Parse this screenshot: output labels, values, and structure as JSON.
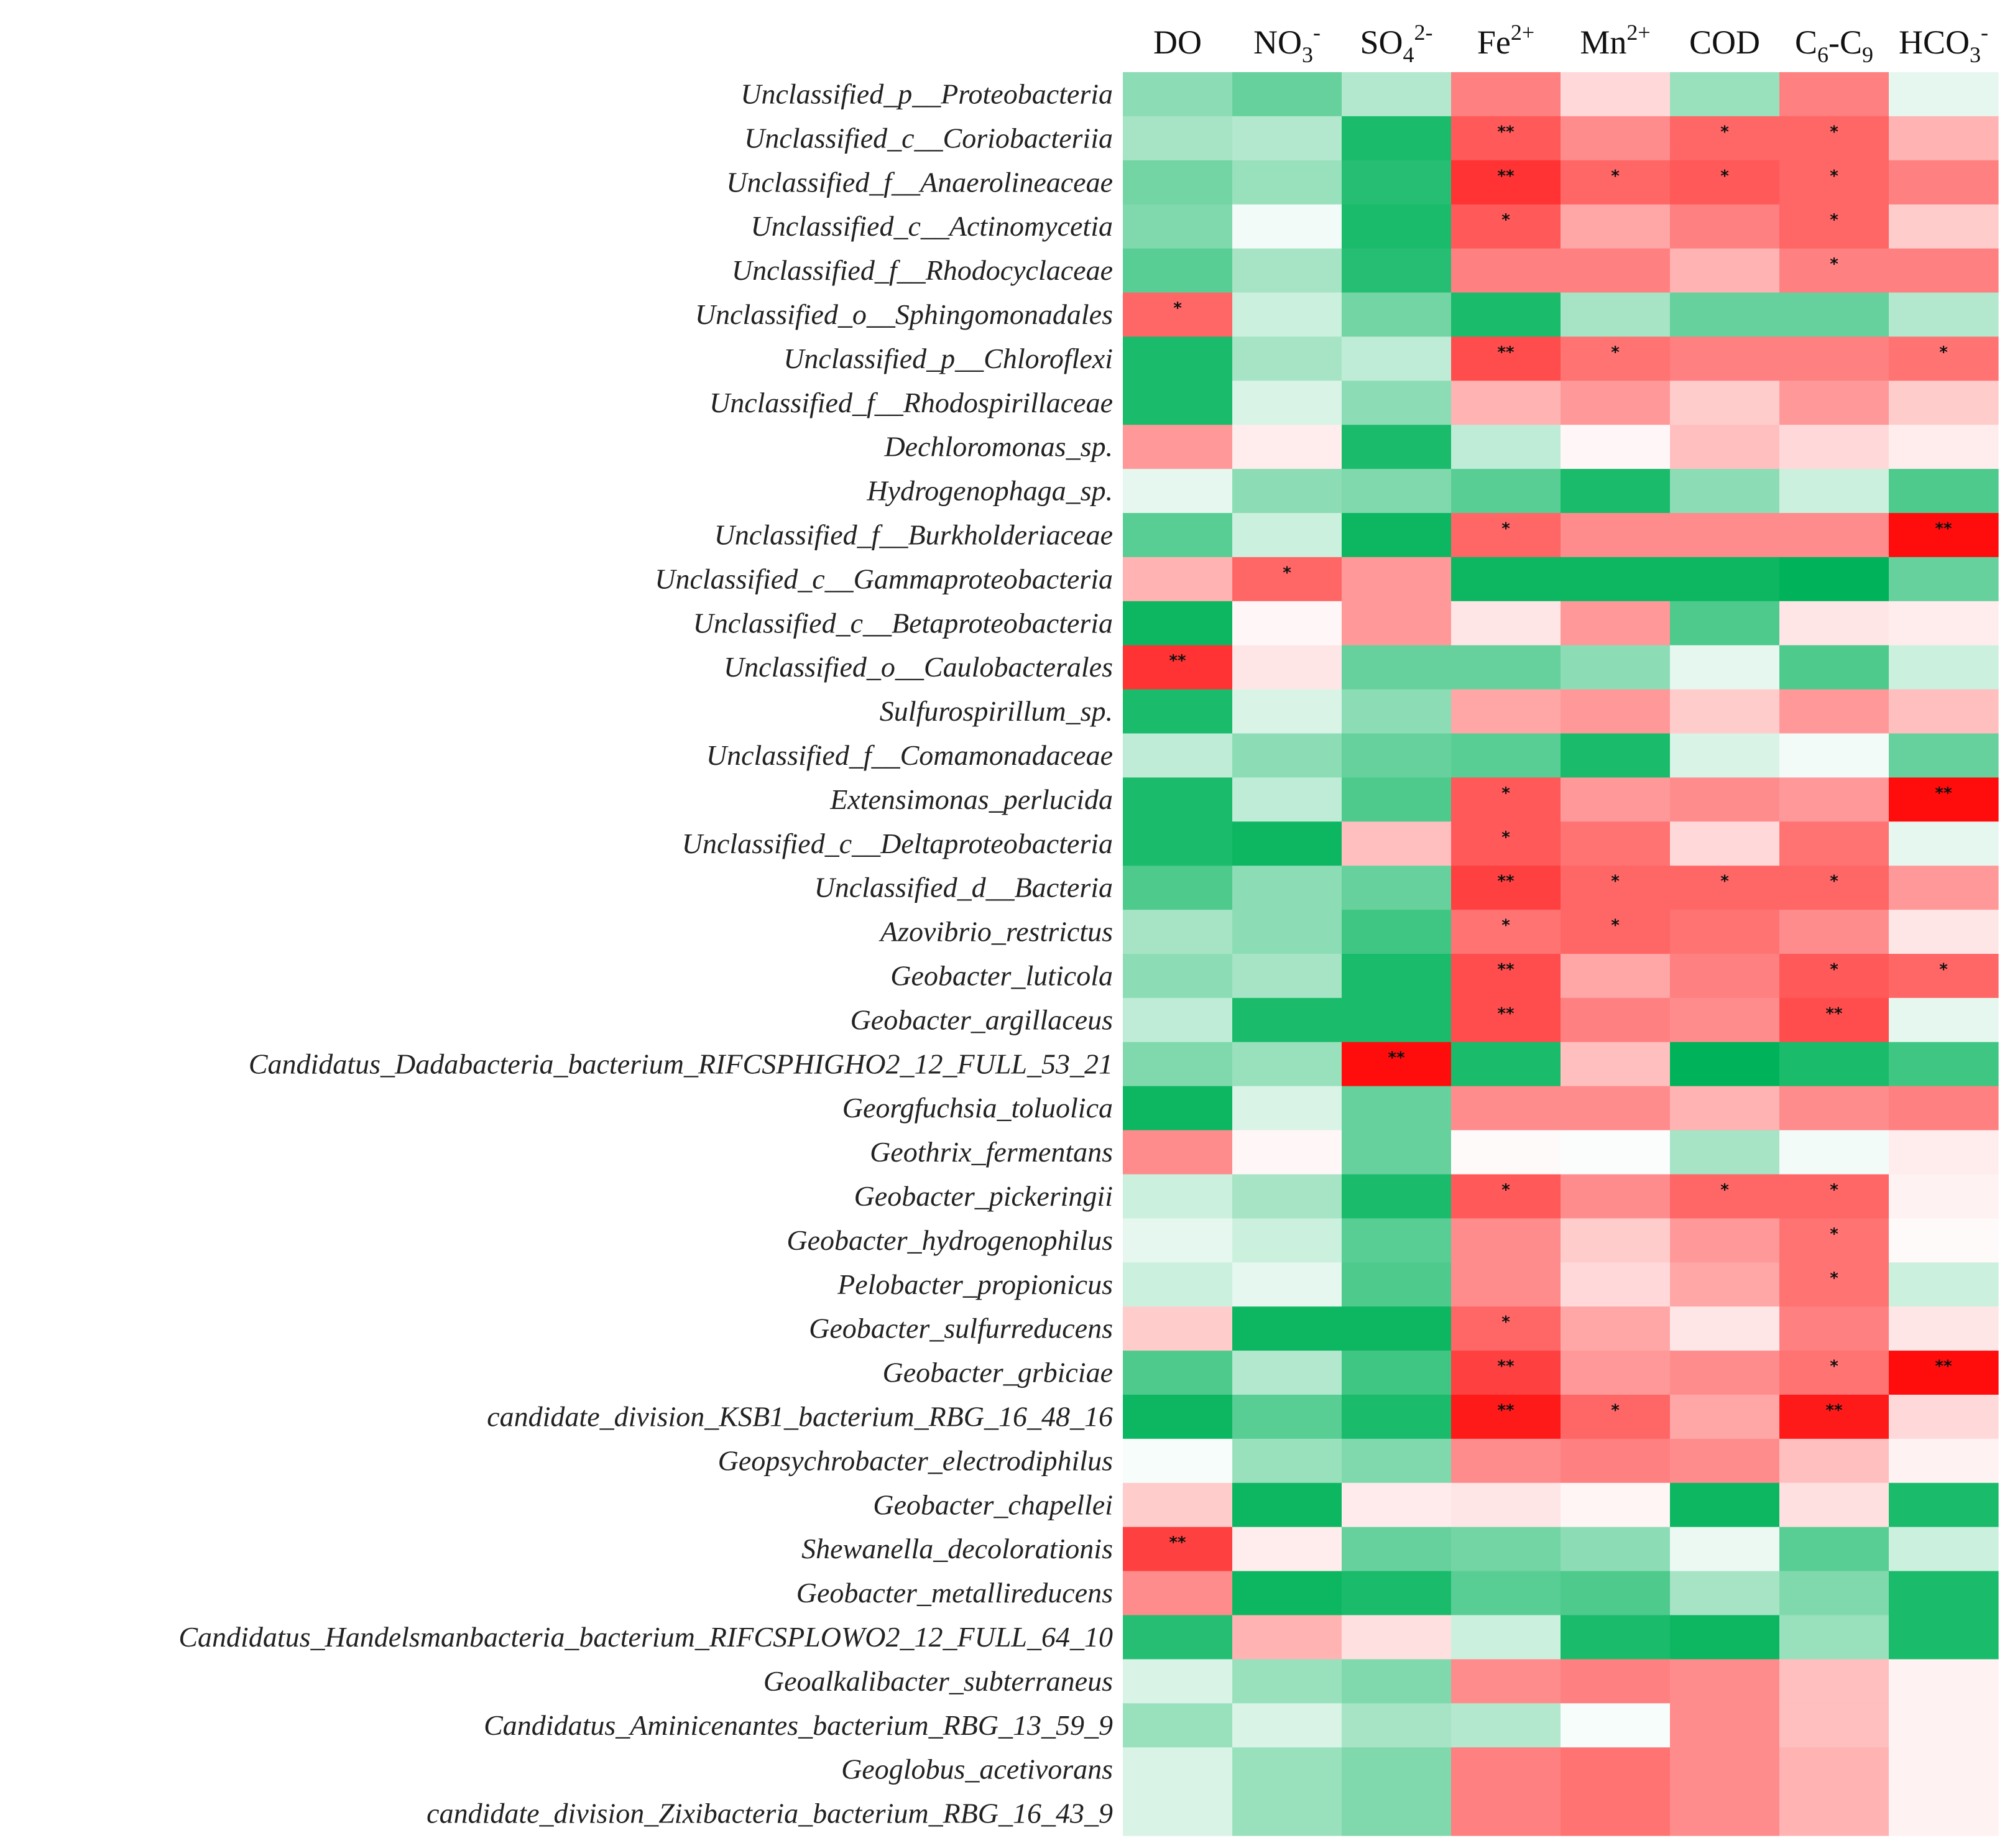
{
  "chart_data": {
    "type": "heatmap",
    "title": "",
    "color_scale": {
      "negative": "#00b35a",
      "zero": "#ffffff",
      "positive": "#ff0000"
    },
    "columns": [
      {
        "id": "DO",
        "base": "DO",
        "sub": "",
        "sup": "",
        "tail": ""
      },
      {
        "id": "NO3-",
        "base": "NO",
        "sub": "3",
        "sup": "-",
        "tail": ""
      },
      {
        "id": "SO42-",
        "base": "SO",
        "sub": "4",
        "sup": "2-",
        "tail": ""
      },
      {
        "id": "Fe2+",
        "base": "Fe",
        "sub": "",
        "sup": "2+",
        "tail": ""
      },
      {
        "id": "Mn2+",
        "base": "Mn",
        "sub": "",
        "sup": "2+",
        "tail": ""
      },
      {
        "id": "COD",
        "base": "COD",
        "sub": "",
        "sup": "",
        "tail": ""
      },
      {
        "id": "C6-C9",
        "base": "C",
        "sub": "6",
        "sup": "",
        "tail": "-C9"
      },
      {
        "id": "HCO3-",
        "base": "HCO",
        "sub": "3",
        "sup": "-",
        "tail": ""
      }
    ],
    "rows": [
      "Unclassified_p__Proteobacteria",
      "Unclassified_c__Coriobacteriia",
      "Unclassified_f__Anaerolineaceae",
      "Unclassified_c__Actinomycetia",
      "Unclassified_f__Rhodocyclaceae",
      "Unclassified_o__Sphingomonadales",
      "Unclassified_p__Chloroflexi",
      "Unclassified_f__Rhodospirillaceae",
      "Dechloromonas_sp.",
      "Hydrogenophaga_sp.",
      "Unclassified_f__Burkholderiaceae",
      "Unclassified_c__Gammaproteobacteria",
      "Unclassified_c__Betaproteobacteria",
      "Unclassified_o__Caulobacterales",
      "Sulfurospirillum_sp.",
      "Unclassified_f__Comamonadaceae",
      "Extensimonas_perlucida",
      "Unclassified_c__Deltaproteobacteria",
      "Unclassified_d__Bacteria",
      "Azovibrio_restrictus",
      "Geobacter_luticola",
      "Geobacter_argillaceus",
      "Candidatus_Dadabacteria_bacterium_RIFCSPHIGHO2_12_FULL_53_21",
      "Georgfuchsia_toluolica",
      "Geothrix_fermentans",
      "Geobacter_pickeringii",
      "Geobacter_hydrogenophilus",
      "Pelobacter_propionicus",
      "Geobacter_sulfurreducens",
      "Geobacter_grbiciae",
      "candidate_division_KSB1_bacterium_RBG_16_48_16",
      "Geopsychrobacter_electrodiphilus",
      "Geobacter_chapellei",
      "Shewanella_decolorationis",
      "Geobacter_metallireducens",
      "Candidatus_Handelsmanbacteria_bacterium_RIFCSPLOWO2_12_FULL_64_10",
      "Geoalkalibacter_subterraneus",
      "Candidatus_Aminicenantes_bacterium_RBG_13_59_9",
      "Geoglobus_acetivorans",
      "candidate_division_Zixibacteria_bacterium_RBG_16_43_9"
    ],
    "values": [
      [
        -0.45,
        -0.6,
        -0.3,
        0.5,
        0.15,
        -0.4,
        0.5,
        -0.1
      ],
      [
        -0.35,
        -0.3,
        -0.9,
        0.65,
        0.45,
        0.6,
        0.6,
        0.3
      ],
      [
        -0.55,
        -0.4,
        -0.85,
        0.8,
        0.6,
        0.65,
        0.6,
        0.5
      ],
      [
        -0.5,
        -0.05,
        -0.9,
        0.65,
        0.35,
        0.5,
        0.6,
        0.2
      ],
      [
        -0.65,
        -0.35,
        -0.85,
        0.5,
        0.5,
        0.3,
        0.5,
        0.5
      ],
      [
        0.6,
        -0.2,
        -0.55,
        -0.9,
        -0.35,
        -0.6,
        -0.6,
        -0.3
      ],
      [
        -0.9,
        -0.35,
        -0.25,
        0.7,
        0.55,
        0.5,
        0.5,
        0.55
      ],
      [
        -0.9,
        -0.15,
        -0.45,
        0.3,
        0.4,
        0.2,
        0.4,
        0.2
      ],
      [
        0.4,
        0.07,
        -0.9,
        -0.25,
        0.03,
        0.25,
        0.15,
        0.07
      ],
      [
        -0.1,
        -0.45,
        -0.5,
        -0.65,
        -0.9,
        -0.45,
        -0.2,
        -0.7
      ],
      [
        -0.65,
        -0.2,
        -0.95,
        0.6,
        0.45,
        0.45,
        0.45,
        0.95
      ],
      [
        0.3,
        0.6,
        0.4,
        -0.95,
        -0.95,
        -0.95,
        -1.0,
        -0.6
      ],
      [
        -0.95,
        0.03,
        0.4,
        0.1,
        0.4,
        -0.7,
        0.1,
        0.07
      ],
      [
        0.8,
        0.1,
        -0.6,
        -0.6,
        -0.45,
        -0.1,
        -0.7,
        -0.2
      ],
      [
        -0.9,
        -0.15,
        -0.45,
        0.35,
        0.4,
        0.2,
        0.4,
        0.25
      ],
      [
        -0.25,
        -0.45,
        -0.6,
        -0.65,
        -0.9,
        -0.15,
        -0.05,
        -0.6
      ],
      [
        -0.9,
        -0.25,
        -0.7,
        0.65,
        0.4,
        0.45,
        0.4,
        0.95
      ],
      [
        -0.9,
        -0.95,
        0.25,
        0.65,
        0.55,
        0.15,
        0.55,
        -0.1
      ],
      [
        -0.7,
        -0.45,
        -0.6,
        0.75,
        0.6,
        0.6,
        0.6,
        0.4
      ],
      [
        -0.35,
        -0.45,
        -0.75,
        0.55,
        0.6,
        0.55,
        0.45,
        0.1
      ],
      [
        -0.45,
        -0.35,
        -0.9,
        0.7,
        0.35,
        0.5,
        0.65,
        0.6
      ],
      [
        -0.25,
        -0.9,
        -0.9,
        0.7,
        0.5,
        0.45,
        0.7,
        -0.1
      ],
      [
        -0.5,
        -0.4,
        0.95,
        -0.9,
        0.25,
        -1.0,
        -0.9,
        -0.75
      ],
      [
        -0.95,
        -0.15,
        -0.6,
        0.45,
        0.45,
        0.3,
        0.45,
        0.5
      ],
      [
        0.45,
        0.03,
        -0.6,
        0.02,
        -0.02,
        -0.35,
        -0.05,
        0.07
      ],
      [
        -0.2,
        -0.35,
        -0.9,
        0.65,
        0.45,
        0.6,
        0.6,
        0.05
      ],
      [
        -0.1,
        -0.2,
        -0.65,
        0.45,
        0.2,
        0.4,
        0.55,
        0.02
      ],
      [
        -0.2,
        -0.1,
        -0.7,
        0.45,
        0.15,
        0.35,
        0.55,
        -0.2
      ],
      [
        0.2,
        -0.95,
        -0.95,
        0.6,
        0.35,
        0.1,
        0.5,
        0.1
      ],
      [
        -0.7,
        -0.3,
        -0.75,
        0.75,
        0.4,
        0.45,
        0.55,
        0.95
      ],
      [
        -0.95,
        -0.65,
        -0.9,
        0.9,
        0.6,
        0.35,
        0.9,
        0.15
      ],
      [
        -0.03,
        -0.4,
        -0.5,
        0.45,
        0.5,
        0.45,
        0.25,
        0.05
      ],
      [
        0.2,
        -0.95,
        0.08,
        0.1,
        0.04,
        -0.95,
        0.12,
        -0.9
      ],
      [
        0.75,
        0.07,
        -0.6,
        -0.55,
        -0.45,
        -0.08,
        -0.65,
        -0.2
      ],
      [
        0.45,
        -0.95,
        -0.9,
        -0.65,
        -0.7,
        -0.35,
        -0.5,
        -0.9
      ],
      [
        -0.85,
        0.3,
        0.12,
        -0.2,
        -0.9,
        -0.95,
        -0.4,
        -0.9
      ],
      [
        -0.15,
        -0.4,
        -0.5,
        0.45,
        0.5,
        0.45,
        0.25,
        0.05
      ],
      [
        -0.4,
        -0.15,
        -0.35,
        -0.3,
        -0.03,
        0.45,
        0.25,
        0.05
      ],
      [
        -0.15,
        -0.4,
        -0.5,
        0.5,
        0.55,
        0.45,
        0.3,
        0.05
      ],
      [
        -0.15,
        -0.4,
        -0.5,
        0.5,
        0.55,
        0.45,
        0.3,
        0.05
      ]
    ],
    "significance": [
      [
        "",
        "",
        "",
        "",
        "",
        "",
        "",
        ""
      ],
      [
        "",
        "",
        "",
        "**",
        "",
        "*",
        "*",
        ""
      ],
      [
        "",
        "",
        "",
        "**",
        "*",
        "*",
        "*",
        ""
      ],
      [
        "",
        "",
        "",
        "*",
        "",
        "",
        "*",
        ""
      ],
      [
        "",
        "",
        "",
        "",
        "",
        "",
        "*",
        ""
      ],
      [
        "*",
        "",
        "",
        "",
        "",
        "",
        "",
        ""
      ],
      [
        "",
        "",
        "",
        "**",
        "*",
        "",
        "",
        "*"
      ],
      [
        "",
        "",
        "",
        "",
        "",
        "",
        "",
        ""
      ],
      [
        "",
        "",
        "",
        "",
        "",
        "",
        "",
        ""
      ],
      [
        "",
        "",
        "",
        "",
        "",
        "",
        "",
        ""
      ],
      [
        "",
        "",
        "",
        "*",
        "",
        "",
        "",
        "**"
      ],
      [
        "",
        "*",
        "",
        "",
        "",
        "",
        "",
        ""
      ],
      [
        "",
        "",
        "",
        "",
        "",
        "",
        "",
        ""
      ],
      [
        "**",
        "",
        "",
        "",
        "",
        "",
        "",
        ""
      ],
      [
        "",
        "",
        "",
        "",
        "",
        "",
        "",
        ""
      ],
      [
        "",
        "",
        "",
        "",
        "",
        "",
        "",
        ""
      ],
      [
        "",
        "",
        "",
        "*",
        "",
        "",
        "",
        "**"
      ],
      [
        "",
        "",
        "",
        "*",
        "",
        "",
        "",
        ""
      ],
      [
        "",
        "",
        "",
        "**",
        "*",
        "*",
        "*",
        ""
      ],
      [
        "",
        "",
        "",
        "*",
        "*",
        "",
        "",
        ""
      ],
      [
        "",
        "",
        "",
        "**",
        "",
        "",
        "*",
        "*"
      ],
      [
        "",
        "",
        "",
        "**",
        "",
        "",
        "**",
        ""
      ],
      [
        "",
        "",
        "**",
        "",
        "",
        "",
        "",
        ""
      ],
      [
        "",
        "",
        "",
        "",
        "",
        "",
        "",
        ""
      ],
      [
        "",
        "",
        "",
        "",
        "",
        "",
        "",
        ""
      ],
      [
        "",
        "",
        "",
        "*",
        "",
        "*",
        "*",
        ""
      ],
      [
        "",
        "",
        "",
        "",
        "",
        "",
        "*",
        ""
      ],
      [
        "",
        "",
        "",
        "",
        "",
        "",
        "*",
        ""
      ],
      [
        "",
        "",
        "",
        "*",
        "",
        "",
        "",
        ""
      ],
      [
        "",
        "",
        "",
        "**",
        "",
        "",
        "*",
        "**"
      ],
      [
        "",
        "",
        "",
        "**",
        "*",
        "",
        "**",
        ""
      ],
      [
        "",
        "",
        "",
        "",
        "",
        "",
        "",
        ""
      ],
      [
        "",
        "",
        "",
        "",
        "",
        "",
        "",
        ""
      ],
      [
        "**",
        "",
        "",
        "",
        "",
        "",
        "",
        ""
      ],
      [
        "",
        "",
        "",
        "",
        "",
        "",
        "",
        ""
      ],
      [
        "",
        "",
        "",
        "",
        "",
        "",
        "",
        ""
      ],
      [
        "",
        "",
        "",
        "",
        "",
        "",
        "",
        ""
      ],
      [
        "",
        "",
        "",
        "",
        "",
        "",
        "",
        ""
      ],
      [
        "",
        "",
        "",
        "",
        "",
        "",
        "",
        ""
      ],
      [
        "",
        "",
        "",
        "",
        "",
        "",
        "",
        ""
      ]
    ]
  }
}
